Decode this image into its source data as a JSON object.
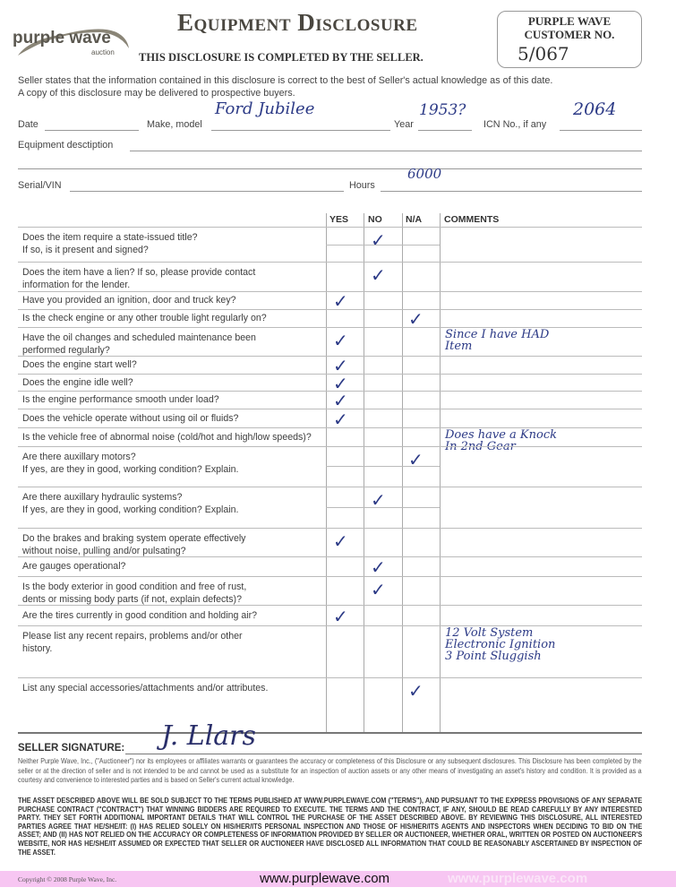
{
  "logo": {
    "text": "purple wave",
    "sub": "auction"
  },
  "header": {
    "title": "Equipment Disclosure",
    "subtitle": "THIS DISCLOSURE IS COMPLETED BY THE SELLER.",
    "customer_box": {
      "label_line1": "PURPLE WAVE",
      "label_line2": "CUSTOMER NO.",
      "value": "5/067"
    }
  },
  "intro": [
    "Seller states that the information contained in this disclosure is correct to the best of Seller's actual knowledge as of this date.",
    "A copy of this disclosure may be delivered to prospective buyers."
  ],
  "fields": {
    "date_label": "Date",
    "date_value": "",
    "make_label": "Make, model",
    "make_value": "Ford Jubilee",
    "year_label": "Year",
    "year_value": "1953?",
    "icn_label": "ICN No., if any",
    "icn_value": "2064",
    "desc_label": "Equipment desctiption",
    "desc_value": "",
    "serial_label": "Serial/VIN",
    "serial_value": "",
    "hours_label": "Hours",
    "hours_value": "6000"
  },
  "table": {
    "headers": [
      "YES",
      "NO",
      "N/A",
      "COMMENTS"
    ],
    "rows": [
      {
        "q": [
          "Does the item require a state-issued title?",
          "If so, is it present and signed?"
        ],
        "answer": "no",
        "comment": []
      },
      {
        "q": [
          "Does the item have a lien? If so, please provide contact",
          "information for the lender."
        ],
        "answer": "no",
        "comment": []
      },
      {
        "q": [
          "Have you provided an ignition, door and truck key?"
        ],
        "answer": "yes",
        "comment": []
      },
      {
        "q": [
          "Is the check engine or any other trouble light regularly on?"
        ],
        "answer": "na",
        "comment": []
      },
      {
        "q": [
          "Have the oil changes and scheduled maintenance been",
          "performed regularly?"
        ],
        "answer": "yes",
        "comment": [
          "Since I have HAD",
          "Item"
        ]
      },
      {
        "q": [
          "Does the engine start well?"
        ],
        "answer": "yes",
        "comment": []
      },
      {
        "q": [
          "Does the engine idle well?"
        ],
        "answer": "yes",
        "comment": []
      },
      {
        "q": [
          "Is the engine performance smooth under load?"
        ],
        "answer": "yes",
        "comment": []
      },
      {
        "q": [
          "Does the vehicle operate without using oil or fluids?"
        ],
        "answer": "yes",
        "comment": []
      },
      {
        "q": [
          "Is the vehicle free of abnormal noise (cold/hot and high/low speeds)?"
        ],
        "answer": null,
        "comment": [
          "Does have a Knock",
          "In 2nd Gear"
        ]
      },
      {
        "q": [
          "Are there auxillary motors?",
          "If yes, are they in good, working condition? Explain."
        ],
        "answer": "na",
        "comment": []
      },
      {
        "q": [
          "Are there auxillary hydraulic systems?",
          "If yes, are they in good, working condition? Explain."
        ],
        "answer": "no",
        "comment": []
      },
      {
        "q": [
          "Do the brakes and braking system operate effectively",
          "without noise, pulling and/or pulsating?"
        ],
        "answer": "yes",
        "comment": []
      },
      {
        "q": [
          "Are gauges operational?"
        ],
        "answer": "no",
        "comment": []
      },
      {
        "q": [
          "Is the body exterior in good condition and free of rust,",
          "dents or missing body parts (if not, explain defects)?"
        ],
        "answer": "no",
        "comment": []
      },
      {
        "q": [
          "Are the tires currently in good condition and holding air?"
        ],
        "answer": "yes",
        "comment": []
      },
      {
        "q": [
          "Please list any recent repairs, problems and/or other",
          "history."
        ],
        "answer": null,
        "comment": [
          "12 Volt System",
          "Electronic Ignition",
          "3 Point Sluggish"
        ]
      },
      {
        "q": [
          "List any special accessories/attachments and/or attributes."
        ],
        "answer": "na",
        "comment": []
      }
    ]
  },
  "signature": {
    "label": "SELLER SIGNATURE:",
    "value": "J. Llars"
  },
  "disclaimer": "Neither Purple Wave, Inc., (\"Auctioneer\") nor its employees or affiliates warrants or guarantees the accuracy or completeness of this Disclosure or any subsequent disclosures.  This Disclosure has been completed by the seller or at the direction of seller and is not intended to be and cannot be used as a substitute for an inspection of auction assets or any other means of investigating an asset's history and condition.  It is provided as a courtesy and convenience to interested parties and is based on Seller's current actual knowledge.",
  "terms": "THE ASSET DESCRIBED ABOVE WILL BE SOLD SUBJECT TO THE TERMS  PUBLISHED AT WWW.PURPLEWAVE.COM (\"TERMS\"), AND PURSUANT TO THE EXPRESS PROVISIONS OF ANY SEPARATE PURCHASE CONTRACT (\"CONTRACT\") THAT WINNING BIDDERS ARE REQUIRED TO EXECUTE.  THE TERMS AND THE CONTRACT, IF ANY, SHOULD BE READ CAREFULLY BY ANY INTERESTED PARTY.  THEY SET FORTH ADDITIONAL IMPORTANT DETAILS THAT WILL CONTROL THE PURCHASE OF THE ASSET DESCRIBED ABOVE.  BY REVIEWING THIS DISCLOSURE,  ALL INTERESTED PARTIES AGREE THAT HE/SHE/IT:  (I) HAS RELIED SOLELY ON HIS/HER/ITS PERSONAL INSPECTION AND THOSE OF HIS/HER/ITS AGENTS AND INSPECTORS WHEN DECIDING TO BID ON THE ASSET; AND (II) HAS NOT RELIED ON THE ACCURACY OR COMPLETENESS OF INFORMATION PROVIDED BY SELLER OR AUCTIONEER, WHETHER ORAL, WRITTEN OR POSTED ON AUCTIONEER'S WEBSITE, NOR HAS HE/SHE/IT ASSUMED OR EXPECTED THAT SELLER OR AUCTIONEER HAVE DISCLOSED ALL INFORMATION THAT COULD BE REASONABLY ASCERTAINED BY INSPECTION OF THE ASSET.",
  "footer": {
    "copyright": "Copyright © 2008 Purple Wave, Inc.",
    "url": "www.purplewave.com",
    "url_faded": "www.purplewave.com",
    "band_color": "#f7c6f2"
  },
  "colors": {
    "ink": "#2c3a86",
    "check_icon": "checkmark-icon"
  }
}
